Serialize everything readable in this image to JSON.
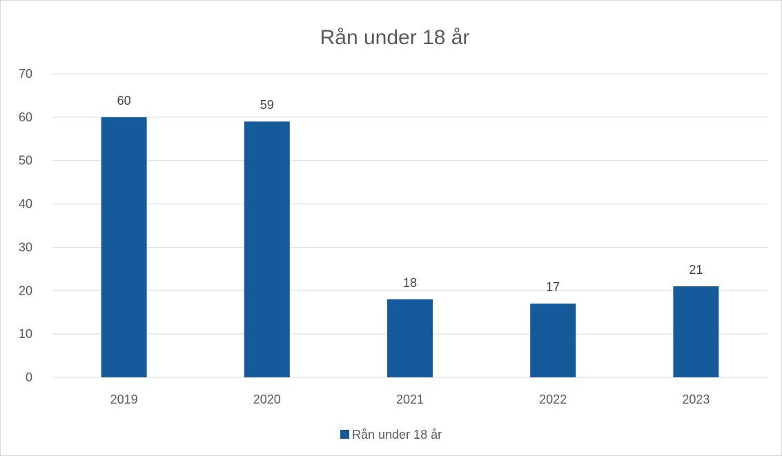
{
  "chart_data": {
    "type": "bar",
    "title": "Rån under 18 år",
    "categories": [
      "2019",
      "2020",
      "2021",
      "2022",
      "2023"
    ],
    "series": [
      {
        "name": "Rån under 18 år",
        "values": [
          60,
          59,
          18,
          17,
          21
        ],
        "color": "#175a9b"
      }
    ],
    "ylim": [
      0,
      70
    ],
    "yticks": [
      "0",
      "10",
      "20",
      "30",
      "40",
      "50",
      "60",
      "70"
    ],
    "data_labels": [
      "60",
      "59",
      "18",
      "17",
      "21"
    ],
    "grid": true,
    "legend_position": "bottom",
    "gridline_color": "#d9d9d9",
    "text_color": "#595959"
  }
}
